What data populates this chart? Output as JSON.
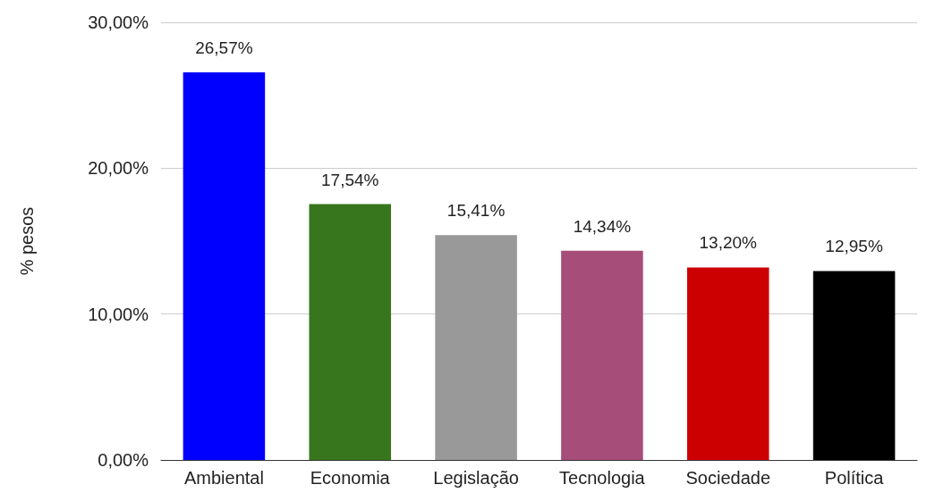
{
  "chart_data": {
    "type": "bar",
    "ylabel": "% pesos",
    "categories": [
      "Ambiental",
      "Economia",
      "Legislação",
      "Tecnologia",
      "Sociedade",
      "Política"
    ],
    "values": [
      26.57,
      17.54,
      15.41,
      14.34,
      13.2,
      12.95
    ],
    "colors": [
      "#0000ff",
      "#38761d",
      "#999999",
      "#a64d79",
      "#cc0000",
      "#000000"
    ],
    "value_labels": [
      "26,57%",
      "17,54%",
      "15,41%",
      "14,34%",
      "13,20%",
      "12,95%"
    ],
    "ylim": [
      0,
      30
    ],
    "yticks": [
      {
        "value": 0,
        "label": "0,00%"
      },
      {
        "value": 10,
        "label": "10,00%"
      },
      {
        "value": 20,
        "label": "20,00%"
      },
      {
        "value": 30,
        "label": "30,00%"
      }
    ],
    "grid": true
  }
}
